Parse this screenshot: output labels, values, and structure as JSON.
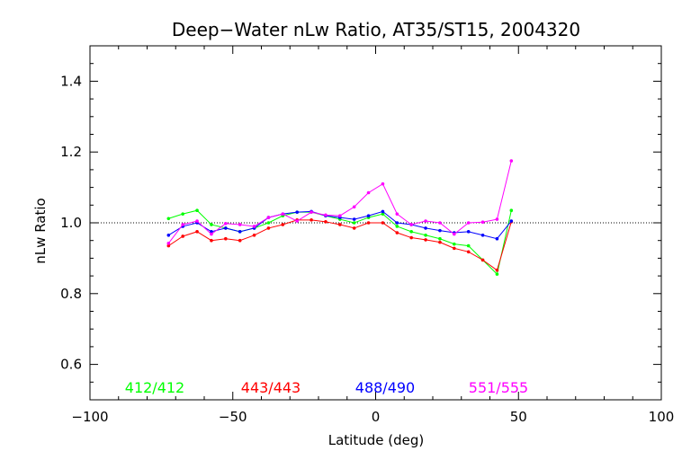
{
  "chart_data": {
    "type": "line",
    "title": "Deep−Water nLw Ratio, AT35/ST15, 2004320",
    "xlabel": "Latitude (deg)",
    "ylabel": "nLw Ratio",
    "xlim": [
      -100,
      100
    ],
    "ylim": [
      0.5,
      1.5
    ],
    "xticks": [
      -100,
      -50,
      0,
      50,
      100
    ],
    "xtick_labels": [
      "−100",
      "−50",
      "0",
      "50",
      "100"
    ],
    "yticks": [
      0.6,
      0.8,
      1.0,
      1.2,
      1.4
    ],
    "ytick_labels": [
      "0.6",
      "0.8",
      "1.0",
      "1.2",
      "1.4"
    ],
    "reference_line": {
      "y": 1.0,
      "style": "dotted"
    },
    "grid": false,
    "legend_position": "bottom",
    "x": [
      -72.5,
      -67.5,
      -62.5,
      -57.5,
      -52.5,
      -47.5,
      -42.5,
      -37.5,
      -32.5,
      -27.5,
      -22.5,
      -17.5,
      -12.5,
      -7.5,
      -2.5,
      2.5,
      7.5,
      12.5,
      17.5,
      22.5,
      27.5,
      32.5,
      37.5,
      42.5,
      47.5
    ],
    "series": [
      {
        "name": "412/412",
        "color": "#00ff00",
        "values": [
          1.012,
          1.025,
          1.035,
          0.995,
          0.985,
          0.975,
          0.985,
          1.0,
          1.02,
          1.03,
          1.03,
          1.02,
          1.01,
          1.0,
          1.015,
          1.025,
          0.99,
          0.975,
          0.965,
          0.955,
          0.94,
          0.935,
          0.895,
          0.855,
          1.035
        ]
      },
      {
        "name": "443/443",
        "color": "#ff0000",
        "values": [
          0.935,
          0.962,
          0.975,
          0.95,
          0.955,
          0.95,
          0.965,
          0.985,
          0.995,
          1.008,
          1.008,
          1.003,
          0.995,
          0.985,
          1.0,
          1.0,
          0.972,
          0.958,
          0.952,
          0.945,
          0.928,
          0.918,
          0.895,
          0.866,
          1.003
        ]
      },
      {
        "name": "488/490",
        "color": "#0000ff",
        "values": [
          0.965,
          0.99,
          1.0,
          0.975,
          0.985,
          0.975,
          0.985,
          1.015,
          1.025,
          1.03,
          1.032,
          1.02,
          1.015,
          1.01,
          1.02,
          1.032,
          1.0,
          0.995,
          0.985,
          0.978,
          0.972,
          0.975,
          0.965,
          0.955,
          1.005
        ]
      },
      {
        "name": "551/555",
        "color": "#ff00ff",
        "values": [
          0.942,
          0.995,
          1.005,
          0.968,
          0.998,
          0.995,
          0.99,
          1.015,
          1.025,
          1.005,
          1.03,
          1.022,
          1.02,
          1.045,
          1.085,
          1.11,
          1.025,
          0.995,
          1.005,
          1.0,
          0.968,
          1.0,
          1.002,
          1.01,
          1.175
        ]
      }
    ]
  }
}
